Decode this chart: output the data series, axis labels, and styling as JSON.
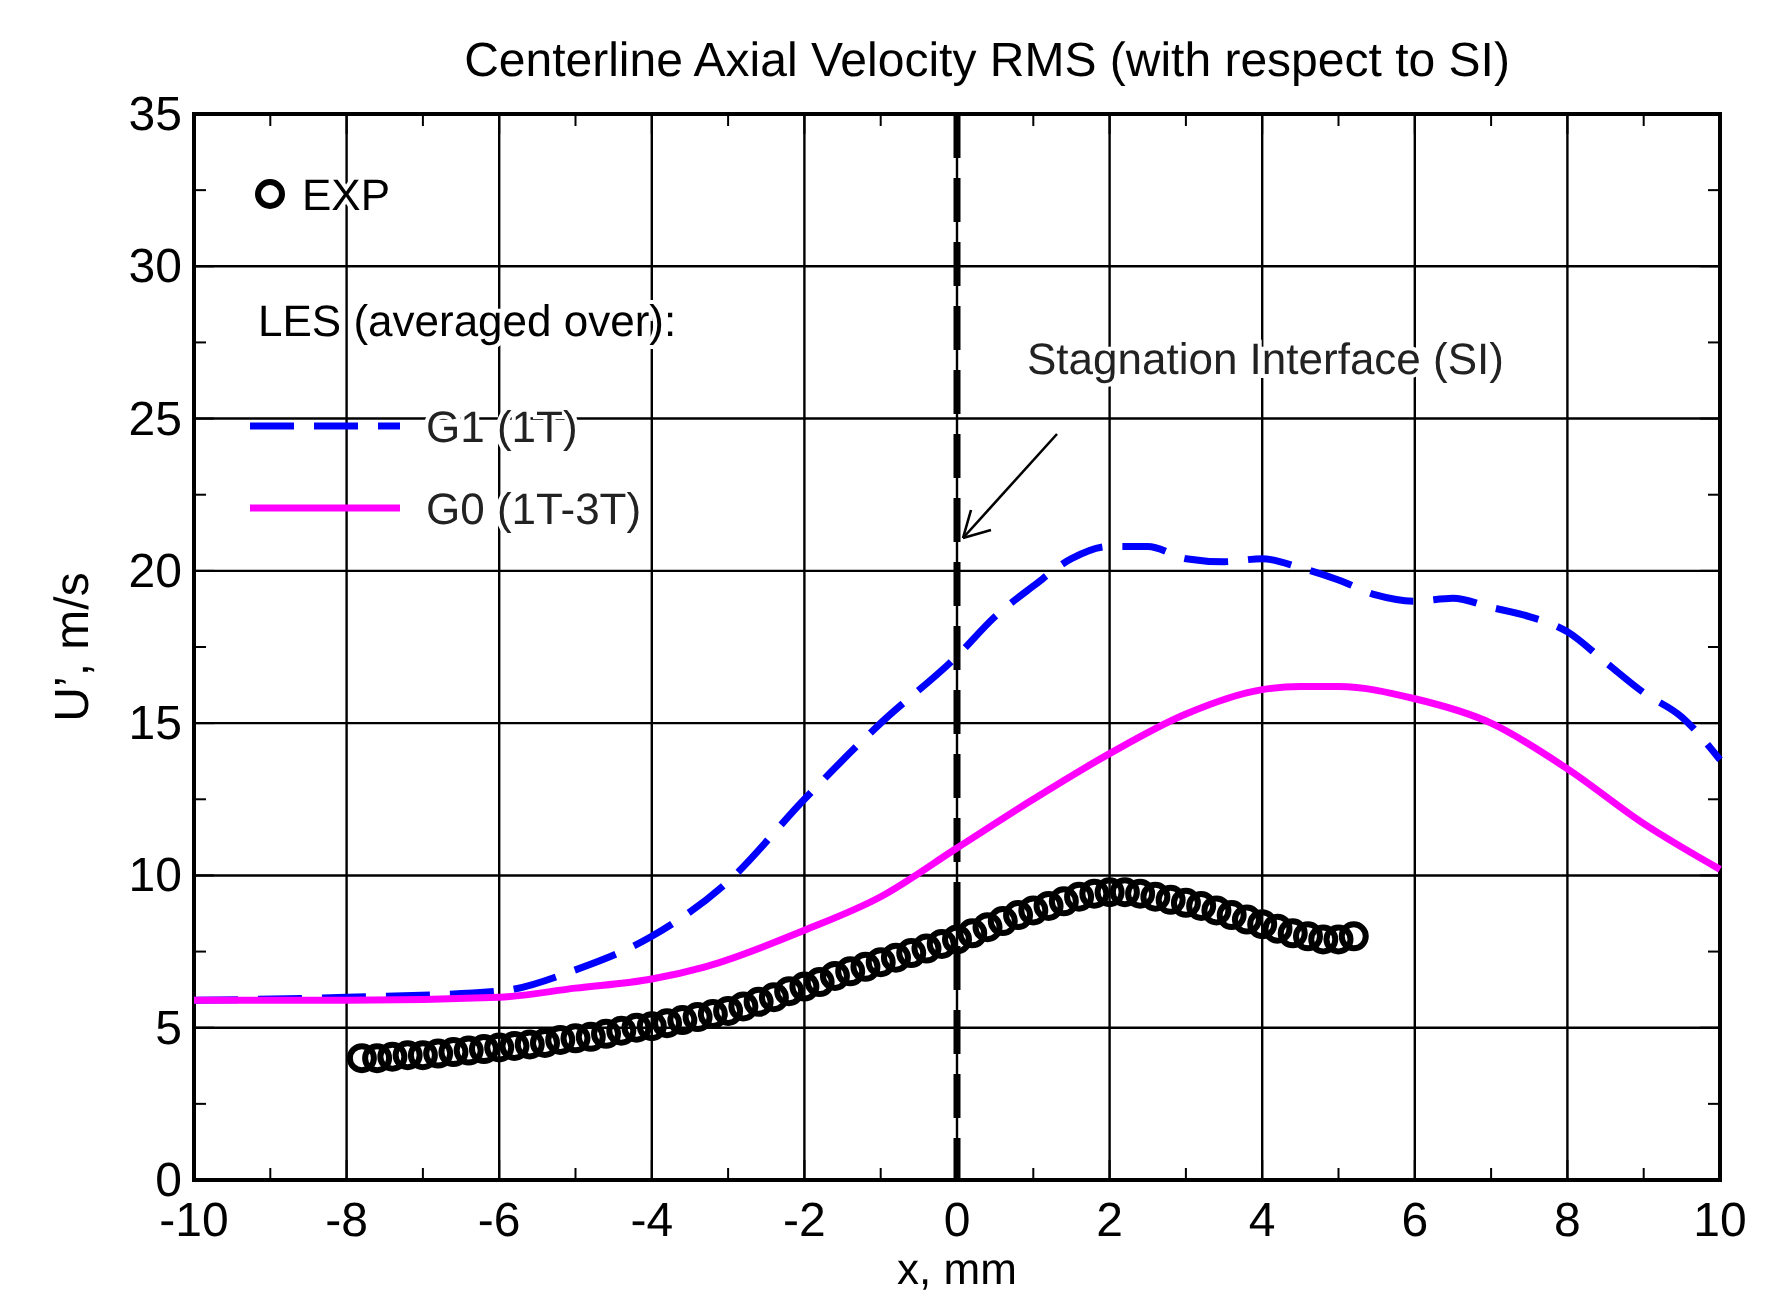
{
  "chart_data": {
    "type": "line",
    "title": "Centerline Axial Velocity RMS (with respect to SI)",
    "xlabel": "x, mm",
    "ylabel": "U’, m/s",
    "legend_title": "LES (averaged over):",
    "legend": "top left",
    "grid": true,
    "xlim": [
      -10,
      10
    ],
    "ylim": [
      0,
      35
    ],
    "xticks": [
      -10,
      {
        "value": -9,
        "label": null
      },
      -8,
      {
        "value": -7,
        "label": null
      },
      -6,
      {
        "value": -5,
        "label": null
      },
      -4,
      {
        "value": -3,
        "label": null
      },
      -2,
      {
        "value": -1,
        "label": null
      },
      0,
      {
        "value": 1,
        "label": null
      },
      2,
      {
        "value": 3,
        "label": null
      },
      4,
      {
        "value": 5,
        "label": null
      },
      6,
      {
        "value": 7,
        "label": null
      },
      8,
      {
        "value": 9,
        "label": null
      },
      10
    ],
    "yticks": [
      0,
      {
        "value": 2.5,
        "label": null
      },
      5,
      {
        "value": 7.5,
        "label": null
      },
      10,
      {
        "value": 12.5,
        "label": null
      },
      15,
      {
        "value": 17.5,
        "label": null
      },
      20,
      {
        "value": 22.5,
        "label": null
      },
      25,
      {
        "value": 27.5,
        "label": null
      },
      30,
      {
        "value": 32.5,
        "label": null
      },
      35
    ],
    "ref_lines": [
      {
        "axis": "x",
        "value": 0,
        "label": "Stagnation Interface (SI)",
        "color": "#000000",
        "line_style": "dashed"
      }
    ],
    "series": [
      {
        "name": "EXP",
        "type": "scatter",
        "marker": "circle",
        "color": "#000000",
        "x": [
          -7.8,
          -7.6,
          -7.4,
          -7.2,
          -7.0,
          -6.8,
          -6.6,
          -6.4,
          -6.2,
          -6.0,
          -5.8,
          -5.6,
          -5.4,
          -5.2,
          -5.0,
          -4.8,
          -4.6,
          -4.4,
          -4.2,
          -4.0,
          -3.8,
          -3.6,
          -3.4,
          -3.2,
          -3.0,
          -2.8,
          -2.6,
          -2.4,
          -2.2,
          -2.0,
          -1.8,
          -1.6,
          -1.4,
          -1.2,
          -1.0,
          -0.8,
          -0.6,
          -0.4,
          -0.2,
          0,
          0.2,
          0.4,
          0.6,
          0.8,
          1.0,
          1.2,
          1.4,
          1.6,
          1.8,
          2.0,
          2.2,
          2.4,
          2.6,
          2.8,
          3.0,
          3.2,
          3.4,
          3.6,
          3.8,
          4.0,
          4.2,
          4.4,
          4.6,
          4.8,
          5.0,
          5.2
        ],
        "values": [
          4.0,
          4.0,
          4.05,
          4.1,
          4.1,
          4.15,
          4.2,
          4.25,
          4.3,
          4.35,
          4.4,
          4.45,
          4.5,
          4.6,
          4.65,
          4.7,
          4.8,
          4.9,
          5.0,
          5.05,
          5.15,
          5.25,
          5.35,
          5.45,
          5.55,
          5.7,
          5.85,
          6.0,
          6.2,
          6.35,
          6.5,
          6.7,
          6.85,
          7.0,
          7.15,
          7.3,
          7.45,
          7.6,
          7.75,
          7.9,
          8.1,
          8.3,
          8.5,
          8.7,
          8.85,
          9.0,
          9.15,
          9.3,
          9.4,
          9.45,
          9.45,
          9.4,
          9.3,
          9.2,
          9.1,
          9.0,
          8.85,
          8.7,
          8.55,
          8.4,
          8.25,
          8.1,
          8.0,
          7.9,
          7.9,
          8.0
        ]
      },
      {
        "name": "G1 (1T)",
        "line_style": "dashed",
        "color": "#0000ff",
        "x": [
          -10,
          -8,
          -6,
          -5,
          -4,
          -3,
          -2,
          -1,
          0,
          0.5,
          1,
          1.5,
          2,
          2.5,
          3,
          3.5,
          4,
          4.5,
          5,
          5.5,
          6,
          6.5,
          7,
          7.5,
          8,
          8.5,
          9,
          9.5,
          10
        ],
        "values": [
          5.9,
          6.0,
          6.2,
          6.9,
          8.0,
          9.8,
          12.5,
          15.0,
          17.2,
          18.5,
          19.5,
          20.4,
          20.8,
          20.8,
          20.4,
          20.3,
          20.4,
          20.1,
          19.7,
          19.2,
          19.0,
          19.1,
          18.8,
          18.5,
          18.0,
          17.0,
          16.0,
          15.2,
          13.8
        ]
      },
      {
        "name": "G0 (1T-3T)",
        "line_style": "solid",
        "color": "#ff00ff",
        "x": [
          -10,
          -8,
          -6,
          -5,
          -4,
          -3.3,
          -2,
          -1,
          0,
          1,
          2,
          3,
          4,
          4.5,
          5,
          6,
          7,
          8,
          9,
          10
        ],
        "values": [
          5.9,
          5.9,
          6.0,
          6.3,
          6.6,
          7.0,
          8.2,
          9.3,
          10.9,
          12.5,
          14.0,
          15.3,
          16.1,
          16.2,
          16.2,
          15.8,
          15.0,
          13.5,
          11.7,
          10.2
        ]
      }
    ]
  }
}
